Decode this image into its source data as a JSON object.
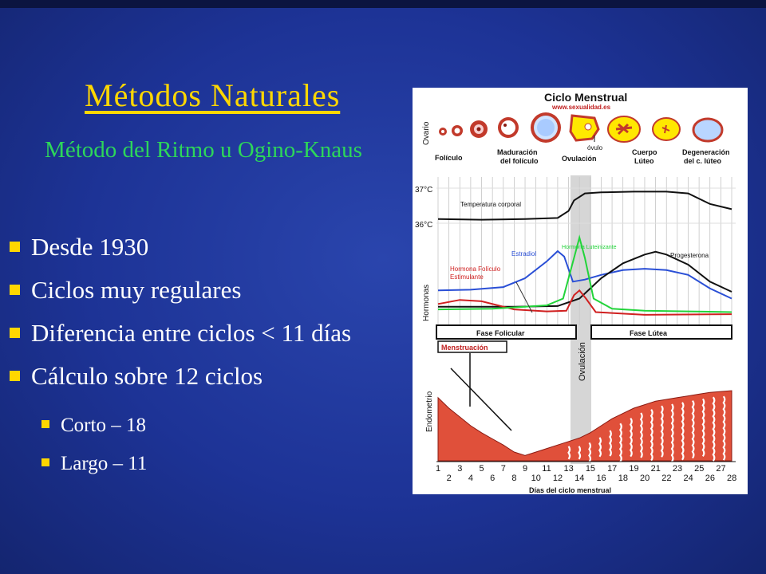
{
  "slide": {
    "title": "Métodos Naturales",
    "subtitle": "Método del Ritmo u Ogino-Knaus",
    "bullets": [
      "Desde 1930",
      "Ciclos muy regulares",
      "Diferencia entre ciclos < 11 días",
      "Cálculo sobre 12 ciclos"
    ],
    "sub_bullets": [
      "Corto – 18",
      "Largo – 11"
    ],
    "colors": {
      "background": "#1d3396",
      "title": "#ffd700",
      "subtitle": "#2dd65a",
      "bullet_marker": "#ffd700",
      "text": "#ffffff"
    }
  },
  "figure": {
    "title": "Ciclo Menstrual",
    "url": "www.sexualidad.es",
    "ovary_label": "Ovario",
    "ovary_stages": [
      "Folículo",
      "Maduración del folículo",
      "Ovulación",
      "Cuerpo Lúteo",
      "Degeneración del c. lúteo"
    ],
    "ovulo_label": "óvulo",
    "temp_ticks": [
      "37°C",
      "36°C"
    ],
    "temp_label": "Temperatura corporal",
    "hormones_label": "Hormonas",
    "hormones": [
      {
        "name": "Estradiol",
        "color": "#2a4fd6"
      },
      {
        "name": "Hormona Luteinizante",
        "color": "#22d43a"
      },
      {
        "name": "Progesterona",
        "color": "#111111"
      },
      {
        "name": "Hormona Folículo Estimulante",
        "color": "#d02020"
      }
    ],
    "phase_follicular": "Fase Folicular",
    "phase_luteal": "Fase Lútea",
    "menstruation": "Menstruación",
    "ovulation_band": "Ovulación",
    "endometrium_label": "Endometrio",
    "days": [
      "1",
      "2",
      "3",
      "4",
      "5",
      "6",
      "7",
      "8",
      "9",
      "10",
      "11",
      "12",
      "13",
      "14",
      "15",
      "16",
      "17",
      "18",
      "19",
      "20",
      "21",
      "22",
      "23",
      "24",
      "25",
      "26",
      "27",
      "28"
    ],
    "x_label": "Días del ciclo menstrual",
    "curves": {
      "temperature": [
        [
          1,
          36.12
        ],
        [
          5,
          36.1
        ],
        [
          9,
          36.12
        ],
        [
          12,
          36.15
        ],
        [
          13,
          36.35
        ],
        [
          13.5,
          36.65
        ],
        [
          14.5,
          36.85
        ],
        [
          16,
          36.88
        ],
        [
          19,
          36.9
        ],
        [
          22,
          36.9
        ],
        [
          24,
          36.85
        ],
        [
          26,
          36.55
        ],
        [
          28,
          36.4
        ]
      ],
      "estradiol": [
        [
          1,
          0.42
        ],
        [
          4,
          0.43
        ],
        [
          7,
          0.47
        ],
        [
          9,
          0.6
        ],
        [
          11,
          0.85
        ],
        [
          12,
          1.0
        ],
        [
          12.6,
          0.92
        ],
        [
          13.4,
          0.55
        ],
        [
          14.5,
          0.58
        ],
        [
          16,
          0.65
        ],
        [
          18,
          0.72
        ],
        [
          20,
          0.74
        ],
        [
          22,
          0.72
        ],
        [
          24,
          0.65
        ],
        [
          26,
          0.45
        ],
        [
          28,
          0.3
        ]
      ],
      "lh": [
        [
          1,
          0.14
        ],
        [
          6,
          0.15
        ],
        [
          9,
          0.18
        ],
        [
          11,
          0.2
        ],
        [
          12.5,
          0.3
        ],
        [
          13.5,
          0.9
        ],
        [
          14,
          1.2
        ],
        [
          14.5,
          0.9
        ],
        [
          15.3,
          0.3
        ],
        [
          17,
          0.15
        ],
        [
          20,
          0.12
        ],
        [
          24,
          0.11
        ],
        [
          28,
          0.1
        ]
      ],
      "progesterone": [
        [
          1,
          0.18
        ],
        [
          8,
          0.18
        ],
        [
          12,
          0.19
        ],
        [
          14,
          0.3
        ],
        [
          16,
          0.6
        ],
        [
          18,
          0.82
        ],
        [
          20,
          0.95
        ],
        [
          21,
          0.99
        ],
        [
          22,
          0.95
        ],
        [
          24,
          0.8
        ],
        [
          26,
          0.55
        ],
        [
          28,
          0.4
        ]
      ],
      "fsh": [
        [
          1,
          0.22
        ],
        [
          3,
          0.28
        ],
        [
          5,
          0.26
        ],
        [
          8,
          0.14
        ],
        [
          11,
          0.11
        ],
        [
          12.8,
          0.12
        ],
        [
          13.5,
          0.35
        ],
        [
          14,
          0.42
        ],
        [
          14.6,
          0.3
        ],
        [
          15.5,
          0.1
        ],
        [
          20,
          0.06
        ],
        [
          28,
          0.07
        ]
      ],
      "endometrium": [
        [
          1,
          0.72
        ],
        [
          2,
          0.6
        ],
        [
          3,
          0.5
        ],
        [
          4,
          0.4
        ],
        [
          5,
          0.32
        ],
        [
          6,
          0.25
        ],
        [
          7,
          0.18
        ],
        [
          8,
          0.1
        ],
        [
          9,
          0.06
        ],
        [
          10,
          0.1
        ],
        [
          11,
          0.14
        ],
        [
          12,
          0.18
        ],
        [
          13,
          0.22
        ],
        [
          14,
          0.26
        ],
        [
          15,
          0.32
        ],
        [
          16,
          0.4
        ],
        [
          17,
          0.48
        ],
        [
          18,
          0.54
        ],
        [
          19,
          0.6
        ],
        [
          20,
          0.64
        ],
        [
          21,
          0.68
        ],
        [
          22,
          0.7
        ],
        [
          23,
          0.72
        ],
        [
          24,
          0.74
        ],
        [
          25,
          0.76
        ],
        [
          26,
          0.78
        ],
        [
          27,
          0.79
        ],
        [
          28,
          0.8
        ]
      ]
    }
  }
}
